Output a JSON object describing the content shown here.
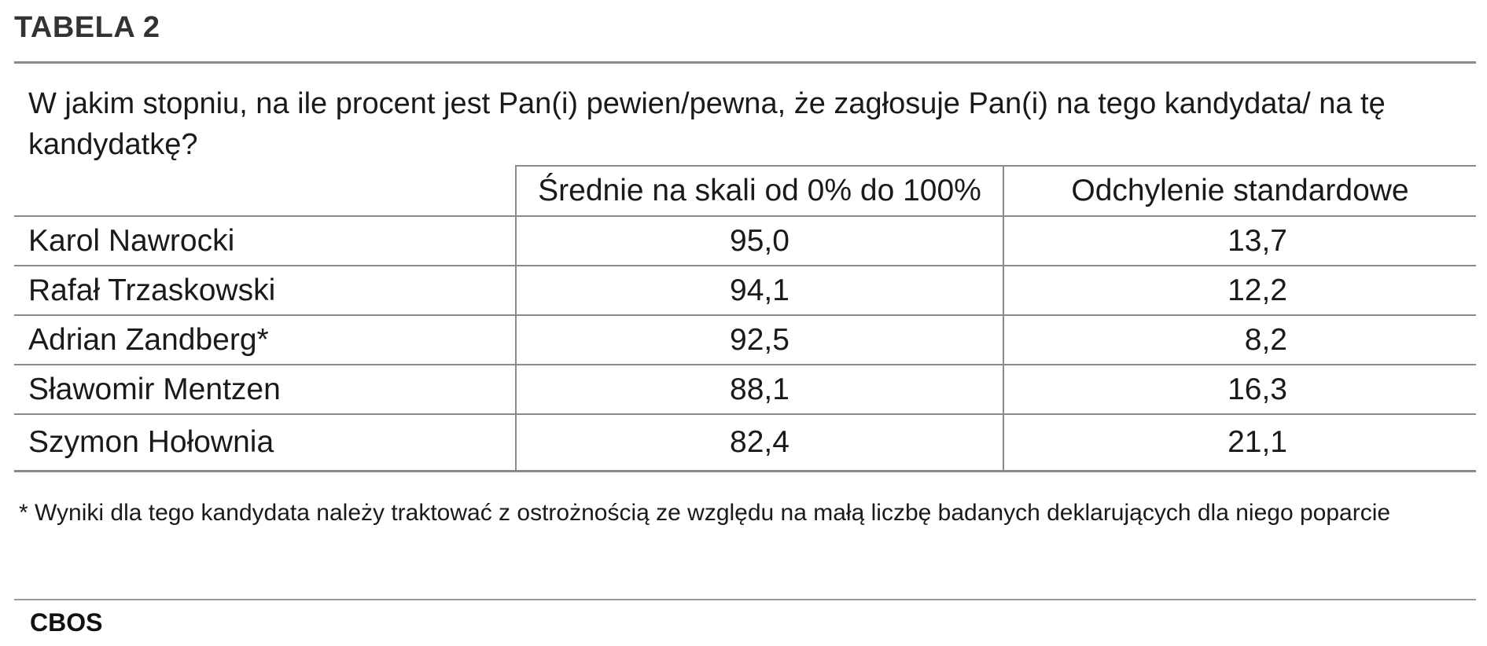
{
  "table_label": "TABELA 2",
  "question": "W jakim stopniu, na ile procent jest Pan(i) pewien/pewna, że zagłosuje Pan(i) na tego kandydata/ na tę kandydatkę?",
  "source": "CBOS",
  "footnote": "* Wyniki dla tego kandydata należy traktować z ostrożnością ze względu na małą liczbę badanych deklarujących dla niego poparcie",
  "chart_data": {
    "type": "table",
    "columns": [
      "",
      "Średnie na skali od 0% do 100%",
      "Odchylenie standardowe"
    ],
    "rows": [
      [
        "Karol Nawrocki",
        "95,0",
        "13,7"
      ],
      [
        "Rafał Trzaskowski",
        "94,1",
        "12,2"
      ],
      [
        "Adrian Zandberg*",
        "92,5",
        "8,2"
      ],
      [
        "Sławomir Mentzen",
        "88,1",
        "16,3"
      ],
      [
        "Szymon Hołownia",
        "82,4",
        "21,1"
      ]
    ]
  }
}
